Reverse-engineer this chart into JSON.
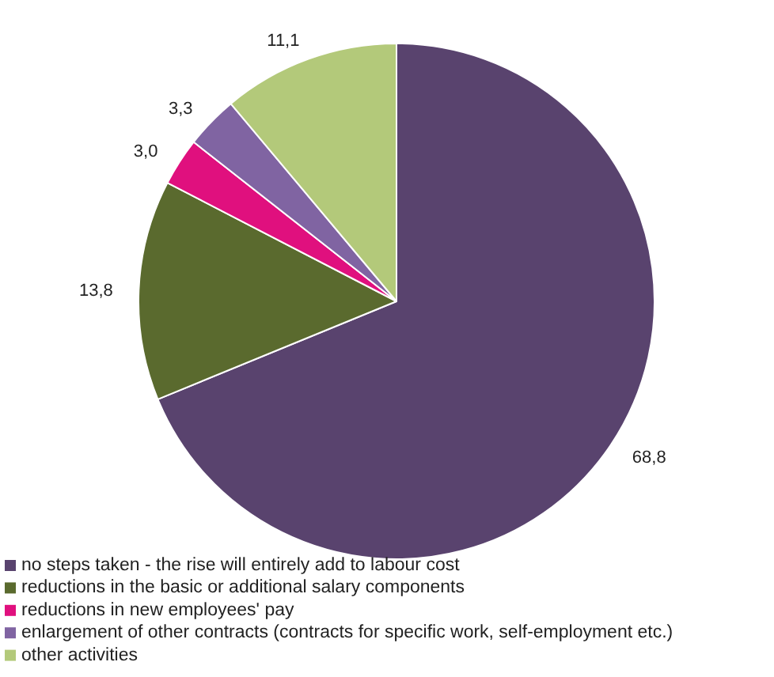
{
  "chart_data": {
    "type": "pie",
    "categories": [
      "no steps taken - the rise will entirely add to labour cost",
      "reductions in the basic or additional salary components",
      "reductions in new employees' pay",
      "enlargement of other contracts (contracts for specific work, self-employment etc.)",
      "other activities"
    ],
    "values": [
      68.8,
      13.8,
      3.0,
      3.3,
      11.1
    ],
    "value_labels": [
      "68,8",
      "13,8",
      "3,0",
      "3,3",
      "11,1"
    ],
    "colors": [
      "#59436e",
      "#5a6a2e",
      "#e0107e",
      "#8064a2",
      "#b3c97a"
    ],
    "legend": "bottom left"
  }
}
